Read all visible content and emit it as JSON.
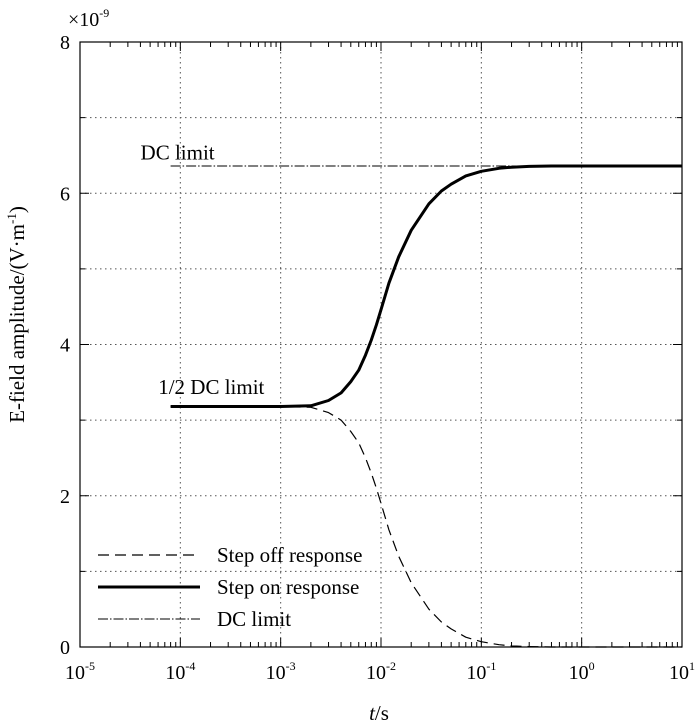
{
  "chart_data": {
    "type": "line",
    "title": "",
    "xlabel_italic": "t",
    "xlabel_unit": "/s",
    "ylabel": "E-field amplitude/(V·m",
    "ylabel_sup": "-1",
    "ylabel_end": ")",
    "y_multiplier": "×10",
    "y_multiplier_exp": "-9",
    "xscale": "log",
    "xlim": [
      1e-05,
      10
    ],
    "ylim": [
      0,
      8
    ],
    "x_ticks": [
      {
        "base": "10",
        "exp": "-5",
        "value": 1e-05
      },
      {
        "base": "10",
        "exp": "-4",
        "value": 0.0001
      },
      {
        "base": "10",
        "exp": "-3",
        "value": 0.001
      },
      {
        "base": "10",
        "exp": "-2",
        "value": 0.01
      },
      {
        "base": "10",
        "exp": "-1",
        "value": 0.1
      },
      {
        "base": "10",
        "exp": "0",
        "value": 1
      },
      {
        "base": "10",
        "exp": "1",
        "value": 10
      }
    ],
    "y_ticks": [
      {
        "label": "0",
        "value": 0
      },
      {
        "label": "2",
        "value": 2
      },
      {
        "label": "4",
        "value": 4
      },
      {
        "label": "6",
        "value": 6
      },
      {
        "label": "8",
        "value": 8
      }
    ],
    "grid": true,
    "legend_position": "bottom-left",
    "annotations": [
      {
        "text": "DC limit",
        "x": 0.0002,
        "y": 6.55
      },
      {
        "text": "1/2 DC limit",
        "x": 0.0003,
        "y": 3.45
      }
    ],
    "series": [
      {
        "name": "Step off response",
        "style": "dashed",
        "x": [
          8e-05,
          0.0002,
          0.0005,
          0.001,
          0.002,
          0.003,
          0.004,
          0.005,
          0.006,
          0.007,
          0.008,
          0.009,
          0.01,
          0.012,
          0.015,
          0.02,
          0.03,
          0.04,
          0.05,
          0.07,
          0.1,
          0.15,
          0.2,
          0.3,
          0.5,
          1,
          2,
          5,
          10
        ],
        "y": [
          3.18,
          3.18,
          3.18,
          3.18,
          3.17,
          3.1,
          3.0,
          2.85,
          2.7,
          2.5,
          2.3,
          2.1,
          1.9,
          1.55,
          1.2,
          0.85,
          0.5,
          0.33,
          0.24,
          0.13,
          0.07,
          0.03,
          0.015,
          0.005,
          0.0,
          0.0,
          0.0,
          0.0,
          0.0
        ]
      },
      {
        "name": "Step on response",
        "style": "solid",
        "x": [
          8e-05,
          0.0002,
          0.0005,
          0.001,
          0.002,
          0.003,
          0.004,
          0.005,
          0.006,
          0.007,
          0.008,
          0.009,
          0.01,
          0.012,
          0.015,
          0.02,
          0.03,
          0.04,
          0.05,
          0.07,
          0.1,
          0.15,
          0.2,
          0.3,
          0.5,
          1,
          2,
          5,
          10
        ],
        "y": [
          3.18,
          3.18,
          3.18,
          3.18,
          3.19,
          3.26,
          3.36,
          3.51,
          3.66,
          3.86,
          4.06,
          4.26,
          4.46,
          4.81,
          5.16,
          5.51,
          5.86,
          6.03,
          6.12,
          6.23,
          6.29,
          6.33,
          6.345,
          6.355,
          6.36,
          6.36,
          6.36,
          6.36,
          6.36
        ]
      },
      {
        "name": "DC limit",
        "style": "dashdot",
        "x": [
          8e-05,
          10
        ],
        "y": [
          6.36,
          6.36
        ]
      }
    ]
  }
}
